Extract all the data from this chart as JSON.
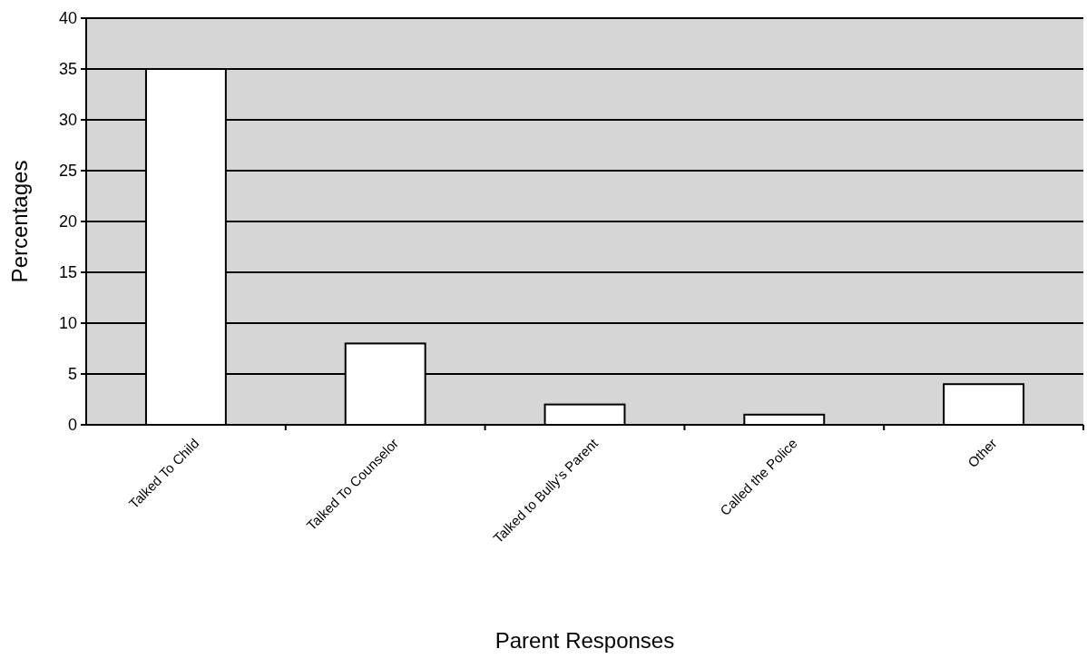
{
  "chart_data": {
    "type": "bar",
    "xlabel": "Parent Responses",
    "ylabel": "Percentages",
    "categories": [
      "Talked To Child",
      "Talked To Counselor",
      "Talked to Bully's Parent",
      "Called the Police",
      "Other"
    ],
    "values": [
      35,
      8,
      2,
      1,
      4
    ],
    "color": "#ffffff",
    "ylim": [
      0,
      40
    ],
    "yticks": [
      0,
      5,
      10,
      15,
      20,
      25,
      30,
      35,
      40
    ],
    "grid": "y"
  }
}
